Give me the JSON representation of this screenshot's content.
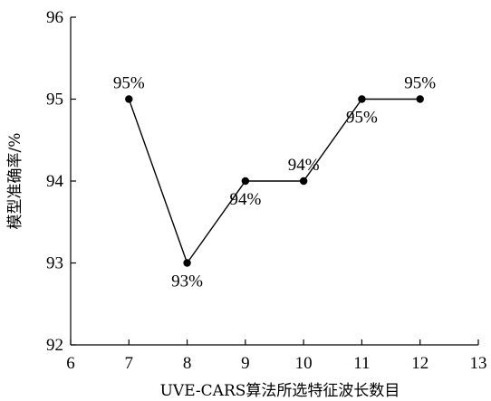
{
  "chart_data": {
    "type": "line",
    "xlabel": "UVE-CARS算法所选特征波长数目",
    "ylabel": "模型准确率/%",
    "xlim": [
      6,
      13
    ],
    "ylim": [
      92,
      96
    ],
    "x_ticks": [
      6,
      7,
      8,
      9,
      10,
      11,
      12,
      13
    ],
    "y_ticks": [
      92,
      93,
      94,
      95,
      96
    ],
    "grid": false,
    "series": [
      {
        "x": [
          7,
          8,
          9,
          10,
          11,
          12
        ],
        "values": [
          95,
          93,
          94,
          94,
          95,
          95
        ],
        "labels": [
          "95%",
          "93%",
          "94%",
          "94%",
          "95%",
          "95%"
        ],
        "label_positions": [
          "above",
          "below",
          "below",
          "above",
          "below",
          "above"
        ]
      }
    ]
  }
}
